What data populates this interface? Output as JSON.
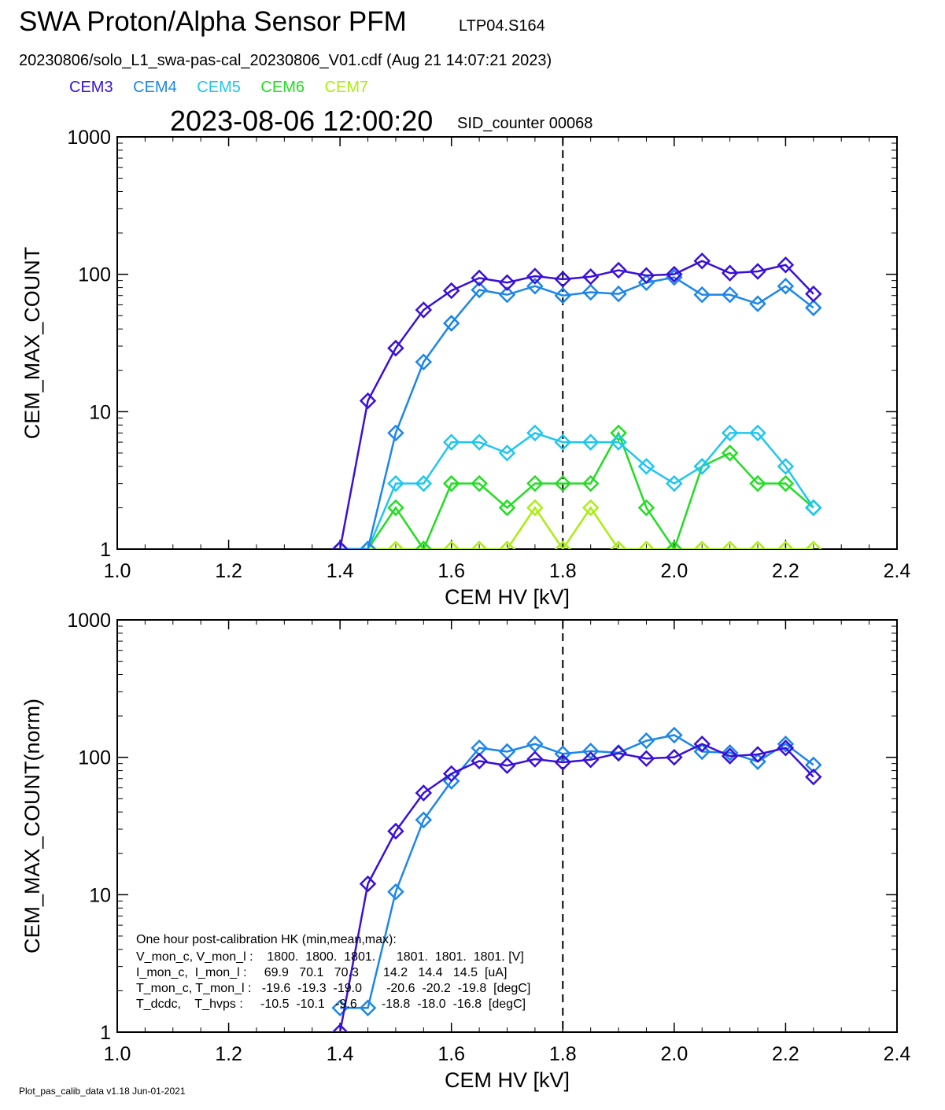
{
  "header": {
    "title": "SWA Proton/Alpha Sensor PFM",
    "subtitle": "LTP04.S164",
    "file_line": "20230806/solo_L1_swa-pas-cal_20230806_V01.cdf  (Aug 21 14:07:21 2023)",
    "timestamp": "2023-08-06 12:00:20",
    "sid_counter": "SID_counter 00068"
  },
  "legend": [
    {
      "name": "CEM3",
      "color": "#3a10d8"
    },
    {
      "name": "CEM4",
      "color": "#1d86e8"
    },
    {
      "name": "CEM5",
      "color": "#1fc6f0"
    },
    {
      "name": "CEM6",
      "color": "#22dd22"
    },
    {
      "name": "CEM7",
      "color": "#aaee11"
    }
  ],
  "footer": "Plot_pas_calib_data v1.18 Jun-01-2021",
  "hk": {
    "title": "One hour post-calibration HK (min,mean,max):",
    "rows": [
      "V_mon_c, V_mon_l :    1800.  1800.  1801.      1801.  1801.  1801. [V]",
      "I_mon_c,  I_mon_l :     69.9   70.1   70.3       14.2   14.4   14.5  [uA]",
      "T_mon_c, T_mon_l :   -19.6  -19.3  -19.0       -20.6  -20.2  -19.8  [degC]",
      "T_dcdc,    T_hvps :     -10.5  -10.1   -9.6       -18.8  -18.0  -16.8  [degC]"
    ]
  },
  "chart_data": [
    {
      "type": "line",
      "xlabel": "CEM HV [kV]",
      "ylabel": "CEM_MAX_COUNT",
      "xlim": [
        1.0,
        2.4
      ],
      "ylim": [
        1,
        1000
      ],
      "yscale": "log",
      "x_ticks": [
        "1.0",
        "1.2",
        "1.4",
        "1.6",
        "1.8",
        "2.0",
        "2.2",
        "2.4"
      ],
      "y_ticks": [
        "1",
        "10",
        "100",
        "1000"
      ],
      "vline_x": 1.8,
      "x": [
        1.4,
        1.45,
        1.5,
        1.55,
        1.6,
        1.65,
        1.7,
        1.75,
        1.8,
        1.85,
        1.9,
        1.95,
        2.0,
        2.05,
        2.1,
        2.15,
        2.2,
        2.25
      ],
      "series": [
        {
          "name": "CEM3",
          "color": "#3a10d8",
          "values": [
            1,
            12,
            29,
            55,
            76,
            94,
            87,
            97,
            92,
            96,
            107,
            98,
            100,
            125,
            102,
            105,
            117,
            72
          ]
        },
        {
          "name": "CEM4",
          "color": "#1d86e8",
          "values": [
            1,
            1,
            7,
            23,
            44,
            77,
            71,
            82,
            70,
            74,
            72,
            87,
            95,
            71,
            71,
            61,
            82,
            57
          ]
        },
        {
          "name": "CEM5",
          "color": "#1fc6f0",
          "values": [
            1,
            1,
            3,
            3,
            6,
            6,
            5,
            7,
            6,
            6,
            6,
            4,
            3,
            4,
            7,
            7,
            4,
            2
          ]
        },
        {
          "name": "CEM6",
          "color": "#22dd22",
          "values": [
            1,
            1,
            2,
            1,
            3,
            3,
            2,
            3,
            3,
            3,
            7,
            2,
            1,
            4,
            5,
            3,
            3,
            2
          ]
        },
        {
          "name": "CEM7",
          "color": "#aaee11",
          "values": [
            1,
            1,
            1,
            1,
            1,
            1,
            1,
            2,
            1,
            2,
            1,
            1,
            1,
            1,
            1,
            1,
            1,
            1
          ]
        }
      ]
    },
    {
      "type": "line",
      "xlabel": "CEM HV [kV]",
      "ylabel": "CEM_MAX_COUNT(norm)",
      "xlim": [
        1.0,
        2.4
      ],
      "ylim": [
        1,
        1000
      ],
      "yscale": "log",
      "x_ticks": [
        "1.0",
        "1.2",
        "1.4",
        "1.6",
        "1.8",
        "2.0",
        "2.2",
        "2.4"
      ],
      "y_ticks": [
        "1",
        "10",
        "100",
        "1000"
      ],
      "vline_x": 1.8,
      "x": [
        1.4,
        1.45,
        1.5,
        1.55,
        1.6,
        1.65,
        1.7,
        1.75,
        1.8,
        1.85,
        1.9,
        1.95,
        2.0,
        2.05,
        2.1,
        2.15,
        2.2,
        2.25
      ],
      "series": [
        {
          "name": "CEM3",
          "color": "#3a10d8",
          "values": [
            1,
            12,
            29,
            55,
            76,
            94,
            87,
            97,
            92,
            96,
            107,
            98,
            100,
            125,
            102,
            105,
            117,
            72
          ]
        },
        {
          "name": "CEM4",
          "color": "#1d86e8",
          "values": [
            1.5,
            1.5,
            10.5,
            35,
            67,
            117,
            110,
            125,
            106,
            111,
            108,
            132,
            145,
            110,
            108,
            93,
            125,
            88
          ]
        }
      ]
    }
  ]
}
